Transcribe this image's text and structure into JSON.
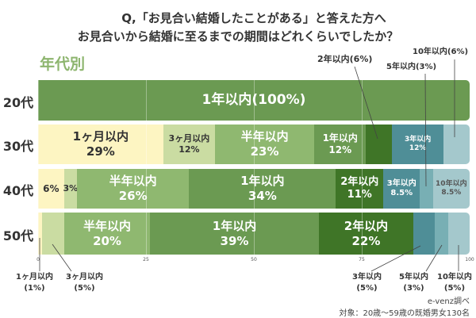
{
  "title_line1": "Q,「お見合い結婚したことがある」と答えた方へ",
  "title_line2": "お見合いから結婚に至るまでの期間はどれくらいでしたか？",
  "subtitle": "年代別",
  "colors": {
    "1ヶ月以内": "#fdf5c2",
    "3ヶ月以内": "#cadca2",
    "半年以内": "#8fb870",
    "1年以内": "#6b9a52",
    "2年以内": "#3f7527",
    "3年以内": "#4f8e97",
    "5年以内": "#78afb4",
    "10年以内": "#a4c8cc"
  },
  "chart_data": {
    "type": "bar",
    "stacked": true,
    "orientation": "horizontal",
    "title": "お見合いから結婚に至るまでの期間（年代別）",
    "categories": [
      "20代",
      "30代",
      "40代",
      "50代"
    ],
    "series": [
      {
        "name": "1ヶ月以内",
        "values": [
          0,
          29,
          6,
          1
        ]
      },
      {
        "name": "3ヶ月以内",
        "values": [
          0,
          12,
          3,
          5
        ]
      },
      {
        "name": "半年以内",
        "values": [
          0,
          23,
          26,
          20
        ]
      },
      {
        "name": "1年以内",
        "values": [
          100,
          12,
          34,
          39
        ]
      },
      {
        "name": "2年以内",
        "values": [
          0,
          6,
          11,
          22
        ]
      },
      {
        "name": "3年以内",
        "values": [
          0,
          12,
          8.5,
          5
        ]
      },
      {
        "name": "5年以内",
        "values": [
          0,
          0,
          3,
          3
        ]
      },
      {
        "name": "10年以内",
        "values": [
          0,
          6,
          8.5,
          5
        ]
      }
    ],
    "xlim": [
      0,
      100
    ],
    "xticks": [
      "0",
      "25",
      "50",
      "75",
      "100"
    ]
  },
  "segment_labels": [
    [
      {
        "series": "1年以内",
        "text": "1年以内(100%)",
        "size": 17,
        "color": "#fff"
      }
    ],
    [
      {
        "series": "1ヶ月以内",
        "text": "1ヶ月以内",
        "text2": "29%",
        "size": 15,
        "color": "#333"
      },
      {
        "series": "3ヶ月以内",
        "text": "3ヶ月以内",
        "text2": "12%",
        "size": 11,
        "color": "#333"
      },
      {
        "series": "半年以内",
        "text": "半年以内",
        "text2": "23%",
        "size": 15,
        "color": "#fff"
      },
      {
        "series": "1年以内",
        "text": "1年以内",
        "text2": "12%",
        "size": 12,
        "color": "#fff"
      },
      {
        "series": "3年以内",
        "text": "3年以内",
        "text2": "12%",
        "size": 9,
        "color": "#fff"
      }
    ],
    [
      {
        "series": "1ヶ月以内",
        "text": "6%",
        "size": 12,
        "color": "#333"
      },
      {
        "series": "3ヶ月以内",
        "text": "3%",
        "size": 11,
        "color": "#333"
      },
      {
        "series": "半年以内",
        "text": "半年以内",
        "text2": "26%",
        "size": 15,
        "color": "#fff"
      },
      {
        "series": "1年以内",
        "text": "1年以内",
        "text2": "34%",
        "size": 15,
        "color": "#fff"
      },
      {
        "series": "2年以内",
        "text": "2年以内",
        "text2": "11%",
        "size": 13,
        "color": "#fff"
      },
      {
        "series": "3年以内",
        "text": "3年以内",
        "text2": "8.5%",
        "size": 10,
        "color": "#fff"
      },
      {
        "series": "10年以内",
        "text": "10年以内",
        "text2": "8.5%",
        "size": 9,
        "color": "#555"
      }
    ],
    [
      {
        "series": "半年以内",
        "text": "半年以内",
        "text2": "20%",
        "size": 15,
        "color": "#fff"
      },
      {
        "series": "1年以内",
        "text": "1年以内",
        "text2": "39%",
        "size": 15,
        "color": "#fff"
      },
      {
        "series": "2年以内",
        "text": "2年以内",
        "text2": "22%",
        "size": 15,
        "color": "#fff"
      }
    ]
  ],
  "callouts": {
    "top_2y": "2年以内(6%)",
    "top_5y": "5年以内(3%)",
    "top_10y": "10年以内(6%)",
    "b_1m": "1ヶ月以内",
    "b_1m_v": "(1%)",
    "b_3m": "3ヶ月以内",
    "b_3m_v": "(5%)",
    "b_3y": "3年以内",
    "b_3y_v": "(5%)",
    "b_5y": "5年以内",
    "b_5y_v": "(3%)",
    "b_10y": "10年以内",
    "b_10y_v": "(5%)"
  },
  "source": "e-venz調べ",
  "note": "対象：20歳〜59歳の既婚男女130名"
}
